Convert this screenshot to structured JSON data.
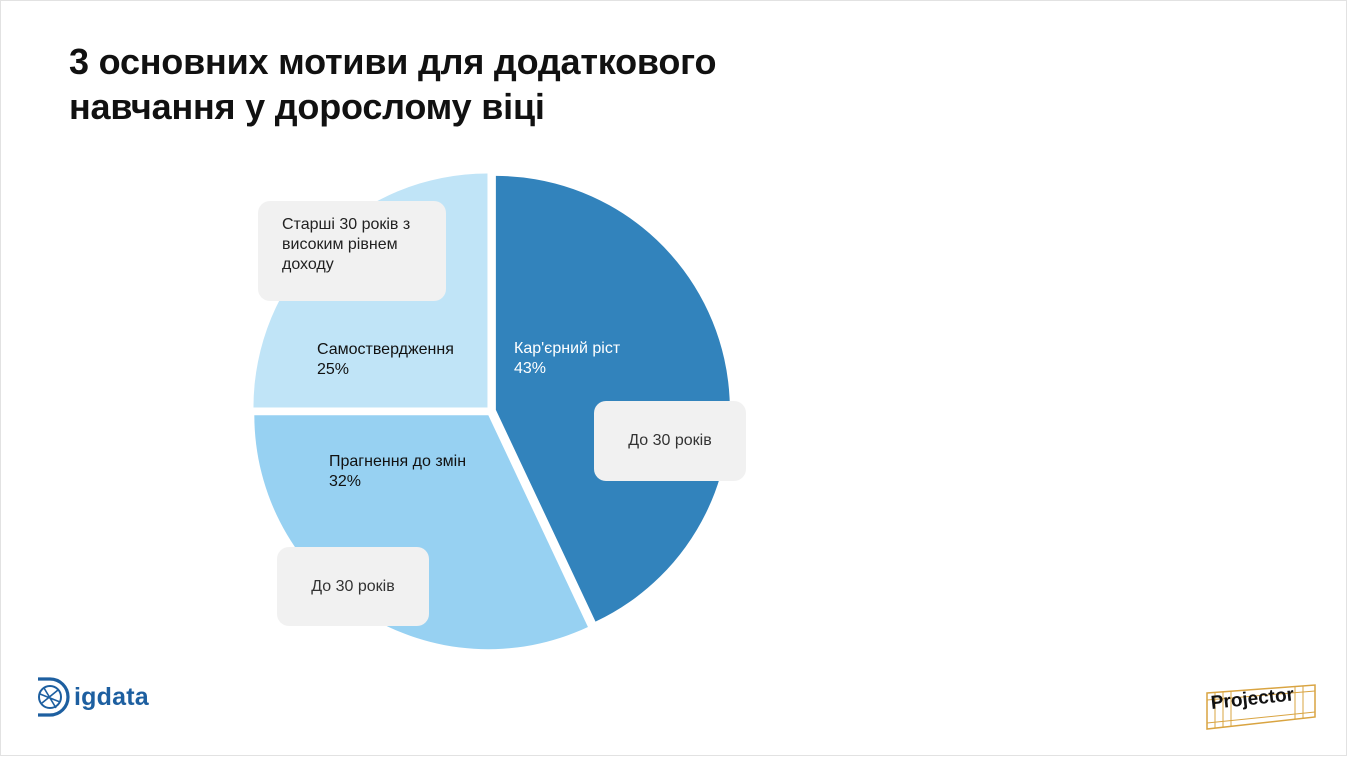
{
  "title": "3 основних мотиви для додаткового\nнавчання у дорослому віці",
  "chart_data": {
    "type": "pie",
    "slices": [
      {
        "name": "Кар'єрний ріст",
        "value": 43,
        "label_pct": "43%",
        "color": "#3283bc"
      },
      {
        "name": "Прагнення до змін",
        "value": 32,
        "label_pct": "32%",
        "color": "#97d1f2"
      },
      {
        "name": "Самоствердження",
        "value": 25,
        "label_pct": "25%",
        "color": "#c0e4f7"
      }
    ],
    "callouts": [
      {
        "text": "Старші 30 років з високим рівнем доходу",
        "slice": "Самоствердження"
      },
      {
        "text": "До 30 років",
        "slice": "Кар'єрний ріст"
      },
      {
        "text": "До 30 років",
        "slice": "Прагнення до змін"
      }
    ]
  },
  "logos": {
    "left": {
      "text": "igdata",
      "color": "#1d5fa0"
    },
    "right": {
      "text": "Projector",
      "color": "#d9a441"
    }
  }
}
